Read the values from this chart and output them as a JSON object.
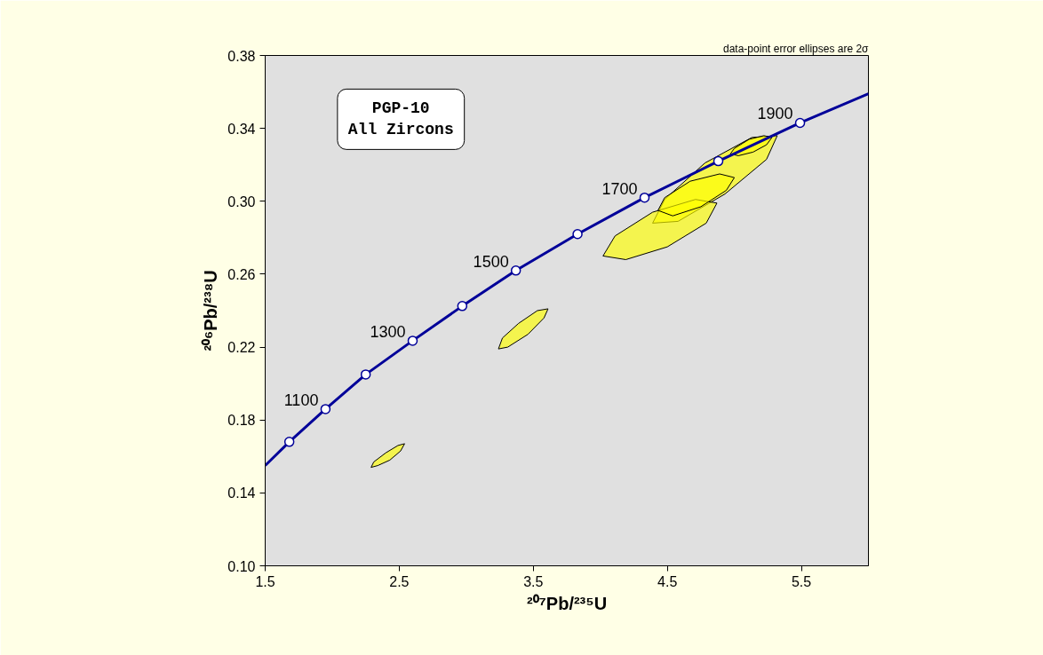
{
  "chart_data": {
    "type": "line",
    "title": "PGP-10\nAll Zircons",
    "xlabel": "²⁰⁷Pb/²³⁵U",
    "ylabel": "²⁰⁶Pb/²³⁸U",
    "xlim": [
      1.5,
      6.0
    ],
    "ylim": [
      0.1,
      0.38
    ],
    "xticks": [
      1.5,
      2.5,
      3.5,
      4.5,
      5.5
    ],
    "yticks": [
      {
        "value": 0.1,
        "label": "0.10"
      },
      {
        "value": 0.14,
        "label": "0.14"
      },
      {
        "value": 0.18,
        "label": "0.18"
      },
      {
        "value": 0.22,
        "label": "0.22"
      },
      {
        "value": 0.26,
        "label": "0.26"
      },
      {
        "value": 0.3,
        "label": "0.30"
      },
      {
        "value": 0.34,
        "label": "0.34"
      },
      {
        "value": 0.38,
        "label": "0.38"
      }
    ],
    "grid": false,
    "series": [
      {
        "type": "area",
        "color": "#ffff00",
        "x": [
          4.39,
          4.48,
          4.78,
          5.13,
          5.32,
          5.24,
          4.93,
          4.58
        ],
        "values": [
          0.288,
          0.301,
          0.321,
          0.335,
          0.336,
          0.323,
          0.304,
          0.289
        ]
      },
      {
        "type": "area",
        "color": "#ffff00",
        "x": [
          4.02,
          4.11,
          4.39,
          4.71,
          4.87,
          4.79,
          4.5,
          4.19
        ],
        "values": [
          0.27,
          0.281,
          0.294,
          0.301,
          0.299,
          0.288,
          0.275,
          0.268
        ]
      },
      {
        "type": "area",
        "color": "#ffff00",
        "x": [
          4.43,
          4.48,
          4.67,
          4.89,
          5.0,
          4.94,
          4.75,
          4.54
        ],
        "values": [
          0.295,
          0.302,
          0.311,
          0.315,
          0.313,
          0.306,
          0.297,
          0.292
        ]
      },
      {
        "type": "area",
        "color": "#ffff00",
        "x": [
          4.97,
          5.0,
          5.11,
          5.22,
          5.28,
          5.24,
          5.14,
          5.03
        ],
        "values": [
          0.326,
          0.329,
          0.334,
          0.336,
          0.335,
          0.331,
          0.327,
          0.325
        ]
      },
      {
        "type": "area",
        "color": "#ffff00",
        "x": [
          3.24,
          3.27,
          3.39,
          3.53,
          3.61,
          3.58,
          3.46,
          3.31
        ],
        "values": [
          0.219,
          0.225,
          0.233,
          0.24,
          0.241,
          0.236,
          0.227,
          0.22
        ]
      },
      {
        "type": "area",
        "color": "#ffff00",
        "x": [
          2.29,
          2.31,
          2.4,
          2.49,
          2.54,
          2.51,
          2.43,
          2.34
        ],
        "values": [
          0.154,
          0.157,
          0.162,
          0.166,
          0.167,
          0.163,
          0.158,
          0.155
        ]
      },
      {
        "color": "#000099",
        "x": [
          1.5,
          1.68,
          1.95,
          2.25,
          2.6,
          2.97,
          3.37,
          3.83,
          4.33,
          4.88,
          5.49,
          6.0
        ],
        "values": [
          0.155,
          0.168,
          0.186,
          0.205,
          0.2235,
          0.2425,
          0.262,
          0.282,
          0.302,
          0.322,
          0.343,
          0.359
        ]
      },
      {
        "type": "scatter",
        "color": "#000099",
        "marker": "circle",
        "x": [
          1.68,
          1.95,
          2.25,
          2.6,
          2.97,
          3.37,
          3.83,
          4.33,
          4.88,
          5.49
        ],
        "values": [
          0.168,
          0.186,
          0.205,
          0.2235,
          0.2425,
          0.262,
          0.282,
          0.302,
          0.322,
          0.343
        ]
      }
    ],
    "annotations": [
      "data-point error ellipses are 2σ",
      {
        "text": "1100",
        "x": 1.95,
        "y": 0.186
      },
      {
        "text": "1300",
        "x": 2.6,
        "y": 0.2235
      },
      {
        "text": "1500",
        "x": 3.37,
        "y": 0.262
      },
      {
        "text": "1700",
        "x": 4.33,
        "y": 0.302
      },
      {
        "text": "1900",
        "x": 5.49,
        "y": 0.343
      }
    ]
  }
}
